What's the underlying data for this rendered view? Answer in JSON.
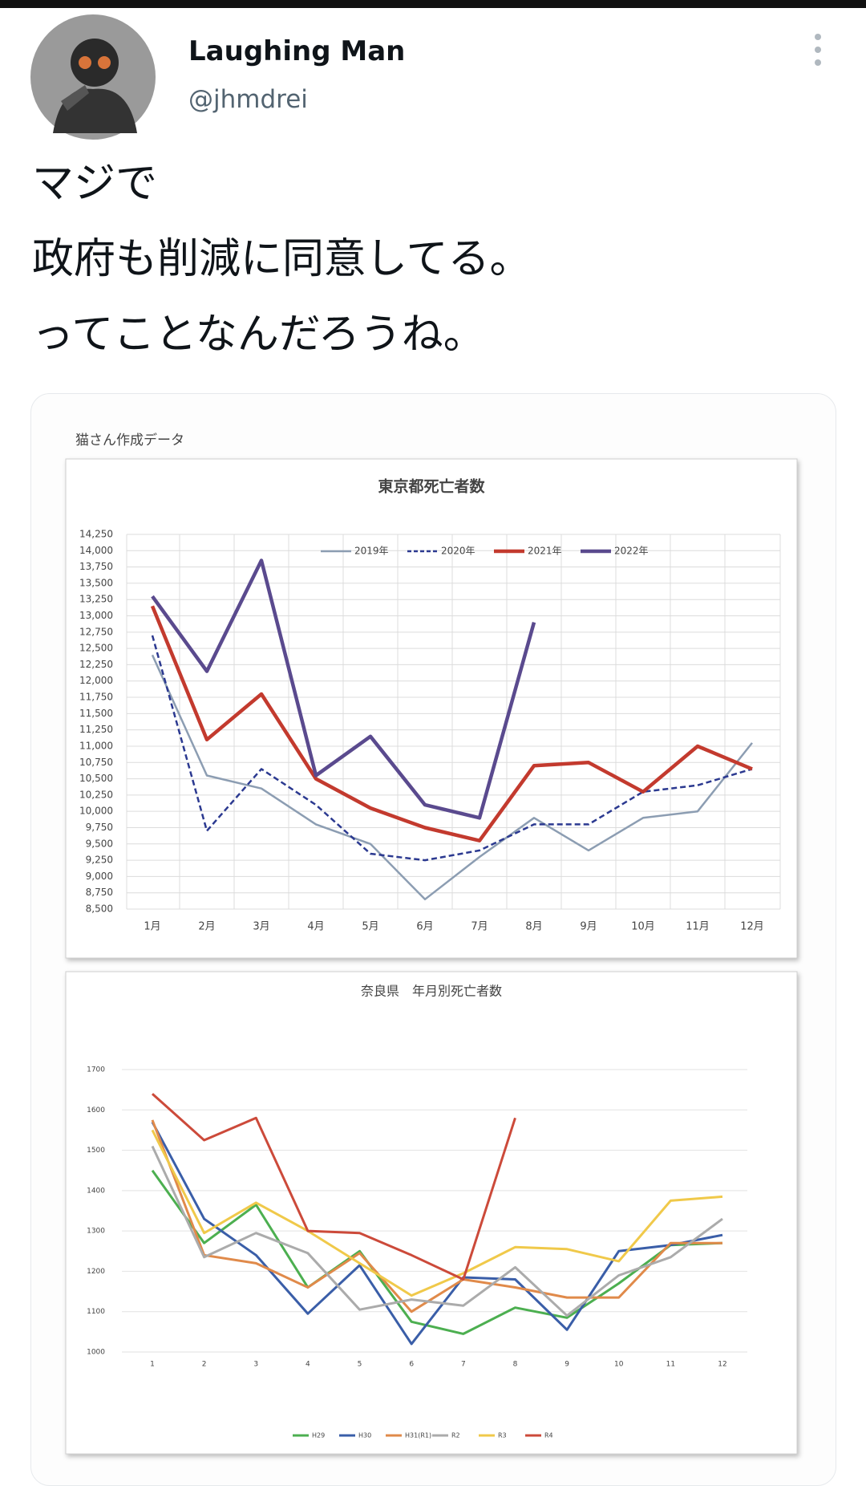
{
  "tweet": {
    "name": "Laughing Man",
    "handle": "@jhmdrei",
    "text_lines": [
      "マジで",
      "政府も削減に同意してる。",
      "ってことなんだろうね。"
    ],
    "image_caption": "猫さん作成データ"
  },
  "chart_data": [
    {
      "type": "line",
      "title": "東京都死亡者数",
      "categories": [
        "1月",
        "2月",
        "3月",
        "4月",
        "5月",
        "6月",
        "7月",
        "8月",
        "9月",
        "10月",
        "11月",
        "12月"
      ],
      "ylim": [
        8500,
        14250
      ],
      "yticks": [
        {
          "value": 8500,
          "label": "8,500"
        },
        {
          "value": 8750,
          "label": "8,750"
        },
        {
          "value": 9000,
          "label": "9,000"
        },
        {
          "value": 9250,
          "label": "9,250"
        },
        {
          "value": 9500,
          "label": "9,500"
        },
        {
          "value": 9750,
          "label": "9,750"
        },
        {
          "value": 10000,
          "label": "10,000"
        },
        {
          "value": 10250,
          "label": "10,250"
        },
        {
          "value": 10500,
          "label": "10,500"
        },
        {
          "value": 10750,
          "label": "10,750"
        },
        {
          "value": 11000,
          "label": "11,000"
        },
        {
          "value": 11250,
          "label": "11,250"
        },
        {
          "value": 11500,
          "label": "11,500"
        },
        {
          "value": 11750,
          "label": "11,750"
        },
        {
          "value": 12000,
          "label": "12,000"
        },
        {
          "value": 12250,
          "label": "12,250"
        },
        {
          "value": 12500,
          "label": "12,500"
        },
        {
          "value": 12750,
          "label": "12,750"
        },
        {
          "value": 13000,
          "label": "13,000"
        },
        {
          "value": 13250,
          "label": "13,250"
        },
        {
          "value": 13500,
          "label": "13,500"
        },
        {
          "value": 13750,
          "label": "13,750"
        },
        {
          "value": 14000,
          "label": "14,000"
        },
        {
          "value": 14250,
          "label": "14,250"
        }
      ],
      "grid": "both",
      "legend": "top",
      "series": [
        {
          "name": "2019年",
          "color": "#8c9db2",
          "values": [
            12400,
            10550,
            10350,
            9800,
            9500,
            8650,
            9300,
            9900,
            9400,
            9900,
            10000,
            11050
          ]
        },
        {
          "name": "2020年",
          "color": "#2b3990",
          "line_style": "dashed",
          "values": [
            12700,
            9700,
            10650,
            10100,
            9350,
            9250,
            9400,
            9800,
            9800,
            10300,
            10400,
            10650
          ]
        },
        {
          "name": "2021年",
          "color": "#c33a2e",
          "values": [
            13150,
            11100,
            11800,
            10500,
            10050,
            9750,
            9550,
            10700,
            10750,
            10300,
            11000,
            10650
          ]
        },
        {
          "name": "2022年",
          "color": "#5a4a8e",
          "values": [
            13300,
            12150,
            13850,
            10550,
            11150,
            10100,
            9900,
            12900,
            null,
            null,
            null,
            null
          ]
        }
      ]
    },
    {
      "type": "line",
      "title": "奈良県　年月別死亡者数",
      "categories": [
        "1",
        "2",
        "3",
        "4",
        "5",
        "6",
        "7",
        "8",
        "9",
        "10",
        "11",
        "12"
      ],
      "ylim": [
        1000,
        1700
      ],
      "yticks": [
        1000,
        1100,
        1200,
        1300,
        1400,
        1500,
        1600,
        1700
      ],
      "grid": "y",
      "legend": "bottom",
      "series": [
        {
          "name": "H29",
          "color": "#4caf50",
          "values": [
            1450,
            1270,
            1365,
            1160,
            1250,
            1075,
            1045,
            1110,
            1085,
            1170,
            1265,
            1270
          ]
        },
        {
          "name": "H30",
          "color": "#3a5ea8",
          "values": [
            1570,
            1330,
            1240,
            1095,
            1215,
            1020,
            1185,
            1180,
            1055,
            1250,
            1265,
            1290
          ]
        },
        {
          "name": "H31(R1)",
          "color": "#e08a4a",
          "values": [
            1575,
            1240,
            1220,
            1160,
            1245,
            1100,
            1180,
            1160,
            1135,
            1135,
            1270,
            1270
          ]
        },
        {
          "name": "R2",
          "color": "#ababab",
          "values": [
            1510,
            1235,
            1295,
            1245,
            1105,
            1130,
            1115,
            1210,
            1090,
            1190,
            1235,
            1330
          ]
        },
        {
          "name": "R3",
          "color": "#f0c94a",
          "values": [
            1550,
            1295,
            1370,
            1300,
            1220,
            1140,
            1195,
            1260,
            1255,
            1225,
            1375,
            1385
          ]
        },
        {
          "name": "R4",
          "color": "#cc4a3a",
          "values": [
            1640,
            1525,
            1580,
            1300,
            1295,
            1240,
            1180,
            1580,
            null,
            null,
            null,
            null
          ]
        }
      ]
    }
  ]
}
